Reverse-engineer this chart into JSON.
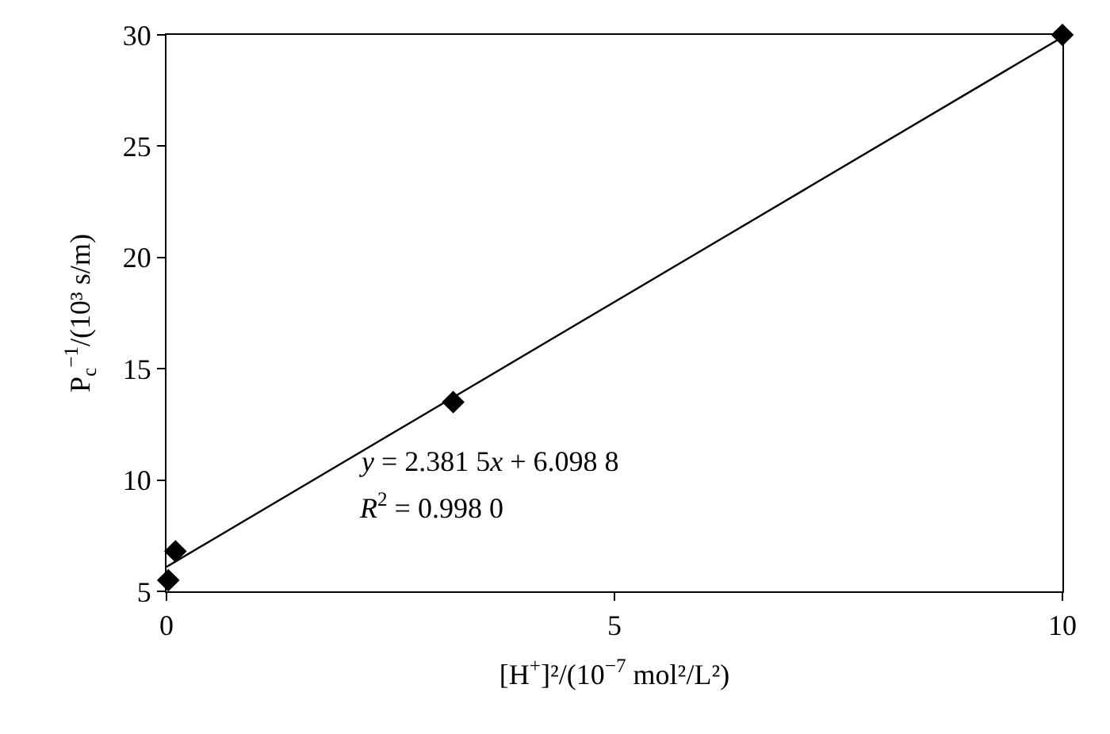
{
  "chart_data": {
    "type": "scatter",
    "xlabel": "[H$^{+}$]²/(10$^{−7}$ mol²/L²)",
    "ylabel": "P$_{c}$$^{−1}$/(10³ s/m)",
    "xlim": [
      0,
      10
    ],
    "xticks": [
      0,
      5,
      10
    ],
    "ylim": [
      5,
      30
    ],
    "yticks": [
      5,
      10,
      15,
      20,
      25,
      30
    ],
    "marker": "diamond",
    "legend": false,
    "series": [
      {
        "color": "#000000",
        "x": [
          0.02,
          0.1,
          3.2,
          10
        ],
        "values": [
          5.5,
          6.8,
          13.5,
          30
        ]
      },
      {
        "type": "line",
        "marker": "none",
        "color": "#000000",
        "x": [
          0,
          10
        ],
        "values": [
          6.1,
          29.9
        ]
      }
    ],
    "annotations": [
      "y = 2.381 5x + 6.098 8",
      "R$^{2}$ = 0.998 0"
    ]
  }
}
